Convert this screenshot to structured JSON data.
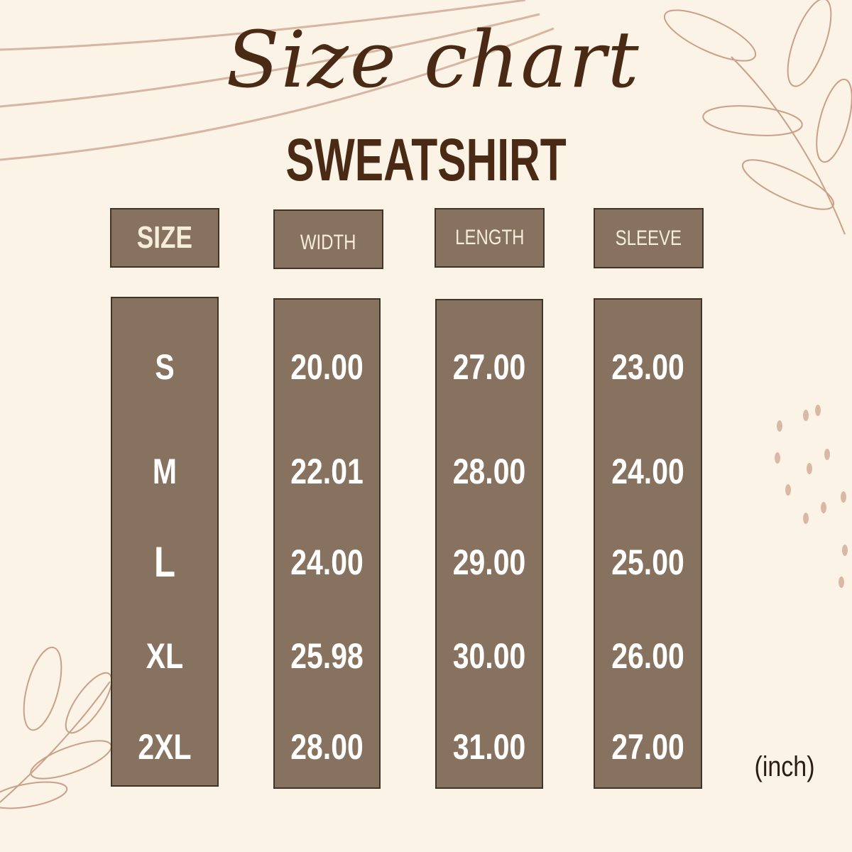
{
  "title": "Size chart",
  "subtitle": "SWEATSHIRT",
  "unit": "(inch)",
  "colors": {
    "background": "#faf3e6",
    "box": "#86725e",
    "header_text": "#f5ecd9",
    "value_text": "#ffffff",
    "title": "#4a2a14",
    "decor": "#c9a08a"
  },
  "columns": [
    {
      "header": "SIZE",
      "values": [
        "S",
        "M",
        "L",
        "XL",
        "2XL"
      ]
    },
    {
      "header": "WIDTH",
      "values": [
        "20.00",
        "22.01",
        "24.00",
        "25.98",
        "28.00"
      ]
    },
    {
      "header": "LENGTH",
      "values": [
        "27.00",
        "28.00",
        "29.00",
        "30.00",
        "31.00"
      ]
    },
    {
      "header": "SLEEVE",
      "values": [
        "23.00",
        "24.00",
        "25.00",
        "26.00",
        "27.00"
      ]
    }
  ]
}
